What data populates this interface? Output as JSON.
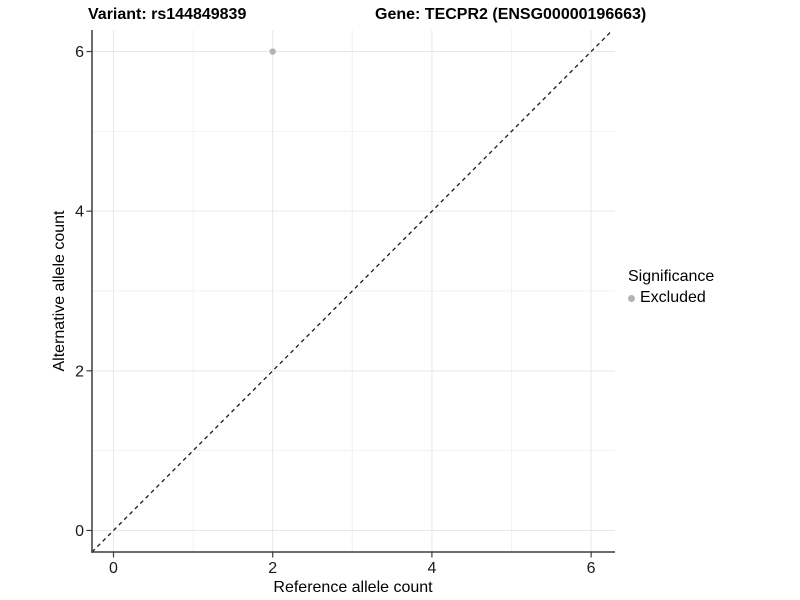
{
  "chart_data": {
    "type": "scatter",
    "title_left": "Variant: rs144849839",
    "title_right": "Gene: TECPR2 (ENSG00000196663)",
    "xlabel": "Reference allele count",
    "ylabel": "Alternative allele count",
    "x_ticks": [
      0,
      2,
      4,
      6
    ],
    "y_ticks": [
      0,
      2,
      4,
      6
    ],
    "x_minor": [
      1,
      3,
      5
    ],
    "y_minor": [
      1,
      3,
      5
    ],
    "xlim": [
      -0.27,
      6.3
    ],
    "ylim": [
      -0.27,
      6.27
    ],
    "grid": true,
    "legend_position": "right",
    "reference_line": {
      "slope": 1,
      "intercept": 0,
      "style": "dashed"
    },
    "series": [
      {
        "name": "Excluded",
        "color": "#b4b4b4",
        "points": [
          {
            "x": 2,
            "y": 6
          }
        ]
      }
    ],
    "legend": {
      "title": "Significance",
      "items": [
        {
          "label": "Excluded",
          "color": "#b4b4b4",
          "marker": "dot-icon"
        }
      ]
    }
  },
  "colors": {
    "background": "#ffffff",
    "axis_line": "#3c3c3c",
    "tick_text": "#1a1a1a",
    "grid_major": "#e7e7e7",
    "grid_minor": "#f2f2f2",
    "reference_line": "#1a1a1a",
    "point": "#b4b4b4"
  }
}
